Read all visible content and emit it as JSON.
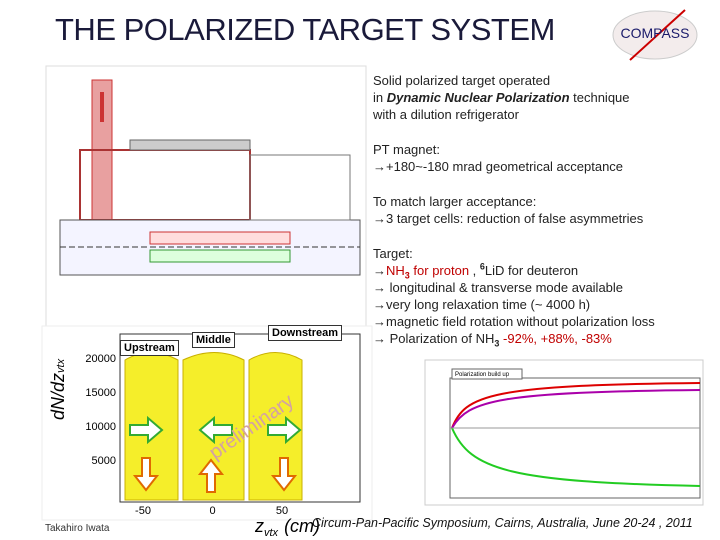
{
  "header": {
    "title": "THE POLARIZED TARGET SYSTEM",
    "logo": "COMPASS"
  },
  "blocks": [
    {
      "lines": [
        [
          {
            "text": "Solid polarized target operated"
          }
        ],
        [
          {
            "text": "in "
          },
          {
            "text": "Dynamic Nuclear Polarization",
            "em": true
          },
          {
            "text": " technique"
          }
        ],
        [
          {
            "text": "with a dilution refrigerator"
          }
        ]
      ]
    },
    {
      "lines": [
        [
          {
            "text": "PT magnet:"
          }
        ],
        [
          {
            "text": "→+180~-180 mrad geometrical acceptance"
          }
        ]
      ]
    },
    {
      "lines": [
        [
          {
            "text": "To match larger acceptance:"
          }
        ],
        [
          {
            "text": "→3 target cells: reduction of false asymmetries"
          }
        ]
      ]
    },
    {
      "lines": [
        [
          {
            "text": "Target:"
          }
        ],
        [
          {
            "text": "→"
          },
          {
            "text": "NH",
            "color": "#c00000"
          },
          {
            "text": "3",
            "color": "#c00000",
            "sub": true
          },
          {
            "text": " for proton",
            "color": "#c00000"
          },
          {
            "text": " , "
          },
          {
            "text": "6",
            "sup": true
          },
          {
            "text": "LiD for deuteron"
          }
        ],
        [
          {
            "text": "→ longitudinal & transverse mode available"
          }
        ],
        [
          {
            "text": "→very long relaxation time (~ 4000 h)"
          }
        ],
        [
          {
            "text": "→magnetic field rotation without polarization loss"
          }
        ],
        [
          {
            "text": "→ Polarization of NH"
          },
          {
            "text": "3",
            "sub": true
          },
          {
            "text": " "
          },
          {
            "text": "-92%,",
            "color": "#c00000"
          },
          {
            "text": " "
          },
          {
            "text": "+88%,",
            "color": "#c00000"
          },
          {
            "text": " "
          },
          {
            "text": "-83%",
            "color": "#c00000"
          }
        ]
      ]
    }
  ],
  "histogram": {
    "cells": [
      "Upstream",
      "Middle",
      "Downstream"
    ],
    "y_label": "dN/dz",
    "y_label_sub": "vtx",
    "x_label": "z",
    "x_label_sub": "vtx",
    "x_unit": "(cm)",
    "watermark": "preliminary",
    "xticks": [
      -50,
      0,
      50
    ],
    "yticks": [
      5000,
      10000,
      15000,
      20000
    ]
  },
  "inset": {
    "title": "Polarization build up"
  },
  "footer": {
    "author": "Takahiro Iwata",
    "event": "Circum-Pan-Pacific Symposium, Cairns, Australia, June 20-24 , 2011"
  }
}
